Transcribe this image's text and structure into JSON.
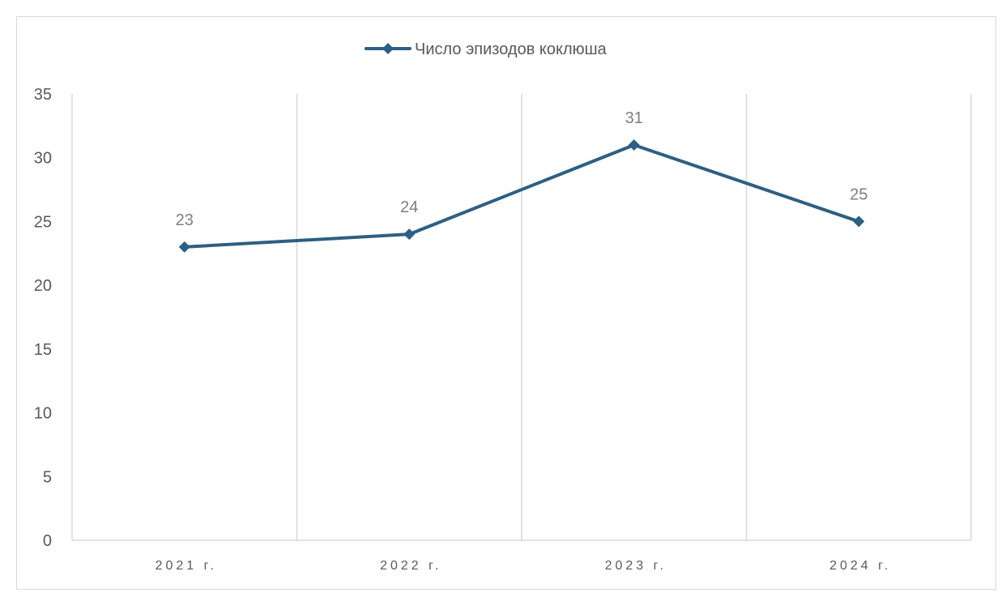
{
  "chart_data": {
    "type": "line",
    "title": "",
    "categories": [
      "2021 г.",
      "2022 г.",
      "2023 г.",
      "2024 г."
    ],
    "series": [
      {
        "name": "Число эпизодов коклюша",
        "values": [
          23,
          24,
          31,
          25
        ],
        "color": "#2e5f82"
      }
    ],
    "data_labels": [
      "23",
      "24",
      "31",
      "25"
    ],
    "yticks": [
      "0",
      "5",
      "10",
      "15",
      "20",
      "25",
      "30",
      "35"
    ],
    "ylim": [
      0,
      35
    ],
    "xlabel": "",
    "ylabel": "",
    "legend": "top-center",
    "grid": "vertical category separators"
  }
}
